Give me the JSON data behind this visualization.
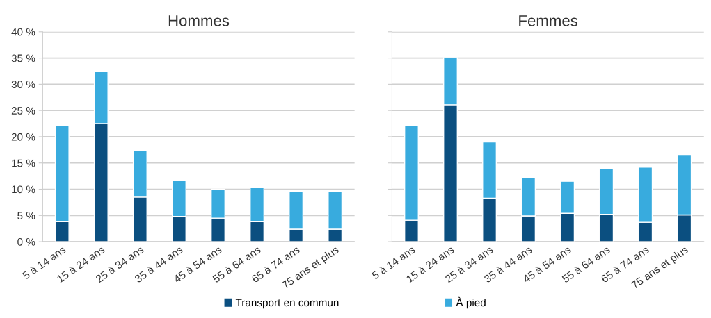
{
  "chart_data": [
    {
      "type": "bar",
      "title": "Hommes",
      "stacked": true,
      "categories": [
        "5 à 14 ans",
        "15 à 24 ans",
        "25 à 34 ans",
        "35 à 44 ans",
        "45 à 54 ans",
        "55 à 64 ans",
        "65 à 74 ans",
        "75 ans et plus"
      ],
      "series": [
        {
          "name": "Transport en commun",
          "color": "#0b4f80",
          "values": [
            3.8,
            22.5,
            8.5,
            4.8,
            4.5,
            3.8,
            2.4,
            2.4
          ]
        },
        {
          "name": "À pied",
          "color": "#38abde",
          "values": [
            18.4,
            9.9,
            8.8,
            6.8,
            5.5,
            6.5,
            7.2,
            7.2
          ]
        }
      ],
      "ylim": [
        0,
        40
      ],
      "yticks": [
        {
          "value": 0,
          "label": "0 %"
        },
        {
          "value": 5,
          "label": "5 %"
        },
        {
          "value": 10,
          "label": "10 %"
        },
        {
          "value": 15,
          "label": "15 %"
        },
        {
          "value": 20,
          "label": "20 %"
        },
        {
          "value": 25,
          "label": "25 %"
        },
        {
          "value": 30,
          "label": "30 %"
        },
        {
          "value": 35,
          "label": "35 %"
        },
        {
          "value": 40,
          "label": "40 %"
        }
      ],
      "grid": "y",
      "legend": "bottom"
    },
    {
      "type": "bar",
      "title": "Femmes",
      "stacked": true,
      "categories": [
        "5 à 14 ans",
        "15 à 24 ans",
        "25 à 34 ans",
        "35 à 44 ans",
        "45 à 54 ans",
        "55 à 64 ans",
        "65 à 74 ans",
        "75 ans et plus"
      ],
      "series": [
        {
          "name": "Transport en commun",
          "color": "#0b4f80",
          "values": [
            4.1,
            26.1,
            8.3,
            4.9,
            5.4,
            5.2,
            3.7,
            5.1
          ]
        },
        {
          "name": "À pied",
          "color": "#38abde",
          "values": [
            18.0,
            9.0,
            10.7,
            7.3,
            6.1,
            8.7,
            10.5,
            11.5
          ]
        }
      ],
      "ylim": [
        0,
        40
      ],
      "yticks": [
        0,
        5,
        10,
        15,
        20,
        25,
        30,
        35,
        40
      ],
      "grid": "y",
      "legend": "bottom",
      "tick_labels": "x"
    }
  ]
}
